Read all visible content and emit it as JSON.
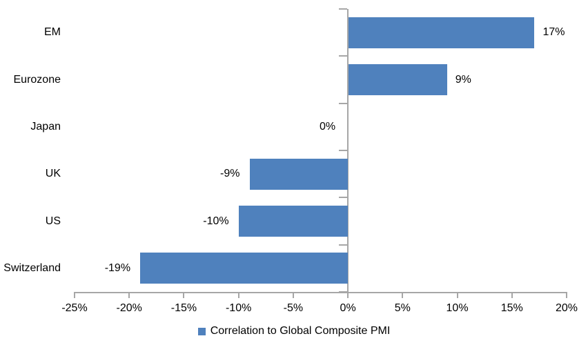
{
  "chart_data": {
    "type": "bar",
    "orientation": "horizontal",
    "title": "",
    "categories": [
      "EM",
      "Eurozone",
      "Japan",
      "UK",
      "US",
      "Switzerland"
    ],
    "values": [
      17,
      9,
      0,
      -9,
      -10,
      -19
    ],
    "value_labels": [
      "17%",
      "9%",
      "0%",
      "-9%",
      "-10%",
      "-19%"
    ],
    "x_axis": {
      "min": -25,
      "max": 20,
      "tick_step": 5,
      "tick_labels": [
        "-25%",
        "-20%",
        "-15%",
        "-10%",
        "-5%",
        "0%",
        "5%",
        "10%",
        "15%",
        "20%"
      ]
    },
    "grid": false,
    "legend": {
      "position": "bottom-center",
      "label": "Correlation to Global Composite PMI"
    },
    "colors": {
      "bar": "#4f81bd",
      "axis": "#a6a6a6",
      "text": "#000000",
      "background": "#ffffff"
    }
  }
}
